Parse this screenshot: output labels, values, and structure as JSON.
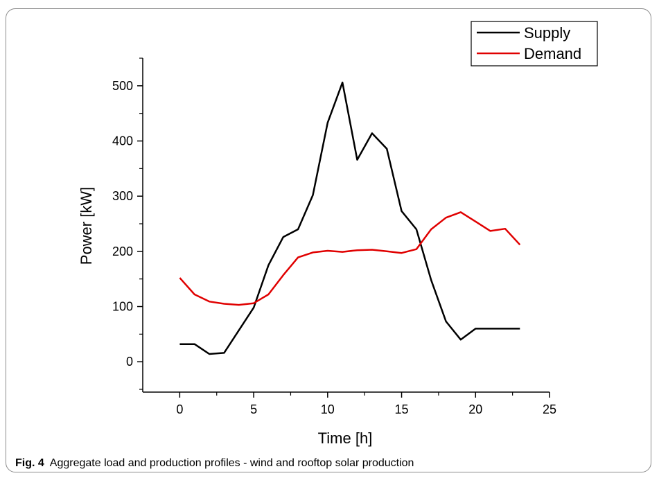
{
  "caption": {
    "label": "Fig. 4",
    "text": "Aggregate load and production profiles - wind and rooftop solar production"
  },
  "chart_data": {
    "type": "line",
    "title": "",
    "xlabel": "Time [h]",
    "ylabel": "Power [kW]",
    "xlim": [
      -2.5,
      25
    ],
    "ylim": [
      -55,
      550
    ],
    "xticks": [
      0,
      5,
      10,
      15,
      20,
      25
    ],
    "yticks": [
      0,
      100,
      200,
      300,
      400,
      500
    ],
    "grid": false,
    "legend": "top-right",
    "x": [
      0,
      1,
      2,
      3,
      4,
      5,
      6,
      7,
      8,
      9,
      10,
      11,
      12,
      13,
      14,
      15,
      16,
      17,
      18,
      19,
      20,
      21,
      22,
      23
    ],
    "series": [
      {
        "name": "Supply",
        "color": "#000000",
        "values": [
          32,
          32,
          14,
          16,
          57,
          98,
          175,
          226,
          240,
          302,
          433,
          506,
          366,
          414,
          386,
          273,
          240,
          148,
          73,
          40,
          60,
          60,
          60,
          60
        ]
      },
      {
        "name": "Demand",
        "color": "#e00000",
        "values": [
          152,
          122,
          109,
          105,
          103,
          106,
          122,
          157,
          189,
          198,
          201,
          199,
          202,
          203,
          200,
          197,
          204,
          240,
          261,
          271,
          254,
          237,
          241,
          212
        ]
      }
    ]
  }
}
